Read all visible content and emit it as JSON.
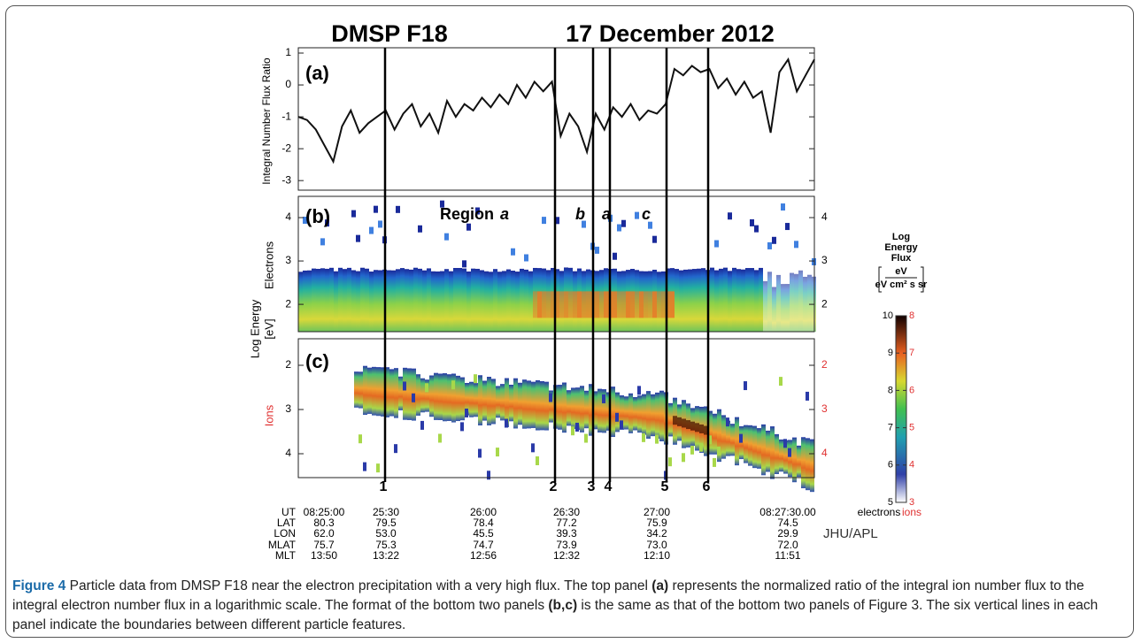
{
  "figure": {
    "title_left": "DMSP F18",
    "title_right": "17 December 2012",
    "panel_labels": [
      "(a)",
      "(b)",
      "(c)"
    ],
    "region_word": "Region",
    "region_labels": [
      "a",
      "b",
      "a",
      "c"
    ],
    "boundaries": [
      "1",
      "2",
      "3",
      "4",
      "5",
      "6"
    ],
    "energy_label": [
      "Log Energy",
      "[eV]"
    ],
    "credit": "JHU/APL"
  },
  "chart_data": {
    "type": "line",
    "ylabel": "Integral Number Flux Ratio",
    "values": [
      -1.0,
      -1.1,
      -1.4,
      -1.9,
      -2.4,
      -1.3,
      -0.8,
      -1.5,
      -1.2,
      -1.0,
      -0.8,
      -1.4,
      -0.9,
      -0.6,
      -1.3,
      -0.9,
      -1.5,
      -0.5,
      -1.0,
      -0.6,
      -0.8,
      -0.4,
      -0.7,
      -0.3,
      -0.6,
      0.0,
      -0.4,
      0.1,
      -0.2,
      0.1,
      -1.6,
      -0.9,
      -1.3,
      -2.1,
      -0.9,
      -1.4,
      -0.7,
      -1.0,
      -0.6,
      -1.1,
      -0.8,
      -0.9,
      -0.6,
      0.5,
      0.3,
      0.6,
      0.4,
      0.5,
      -0.1,
      0.2,
      -0.3,
      0.1,
      -0.4,
      -0.2,
      -1.5,
      0.4,
      0.8,
      -0.2,
      0.3,
      0.8
    ],
    "color": "#111111",
    "ylim": [
      -3.3,
      1
    ],
    "yticks": [
      1,
      0,
      -1,
      -2,
      -3
    ]
  },
  "panel_b": {
    "ylabel": "Electrons",
    "ylim": [
      1.37,
      4.49
    ],
    "yticks": [
      4,
      3,
      2
    ]
  },
  "panel_c": {
    "ylabel": "Ions",
    "ylim": [
      1.4,
      4.54
    ],
    "yticks": [
      2,
      3,
      4
    ]
  },
  "colorbar": {
    "title": [
      "Log",
      "Energy",
      "Flux"
    ],
    "unit_top": "eV",
    "unit_bottom": "eV cm² s sr",
    "electrons_ylim": [
      5,
      10
    ],
    "electrons_ticks": [
      10,
      9,
      8,
      7,
      6,
      5
    ],
    "ions_ylim": [
      3,
      8
    ],
    "ions_ticks": [
      8,
      7,
      6,
      5,
      4,
      3
    ],
    "electrons_label": "electrons",
    "ions_label": "ions"
  },
  "ephemeris": {
    "row_labels": [
      "UT",
      "LAT",
      "LON",
      "MLAT",
      "MLT"
    ],
    "columns": [
      [
        "08:25:00",
        "80.3",
        "62.0",
        "75.7",
        "13:50"
      ],
      [
        "25:30",
        "79.5",
        "53.0",
        "75.3",
        "13:22"
      ],
      [
        "26:00",
        "78.4",
        "45.5",
        "74.7",
        "12:56"
      ],
      [
        "26:30",
        "77.2",
        "39.3",
        "73.9",
        "12:32"
      ],
      [
        "27:00",
        "75.9",
        "34.2",
        "73.0",
        "12:10"
      ],
      [
        "08:27:30.00",
        "74.5",
        "29.9",
        "72.0",
        "11:51"
      ]
    ]
  },
  "caption": {
    "label": "Figure 4",
    "parts": [
      " Particle data from DMSP F18 near the electron precipitation with a very high flux. The top panel ",
      "(a)",
      " represents the normalized ratio of the integral ion number flux to the integral electron number flux in a logarithmic scale. The format of the bottom two panels ",
      "(b,c)",
      " is the same as that of the bottom two panels of Figure 3. The six vertical lines in each panel indicate the boundaries between different particle features."
    ]
  }
}
